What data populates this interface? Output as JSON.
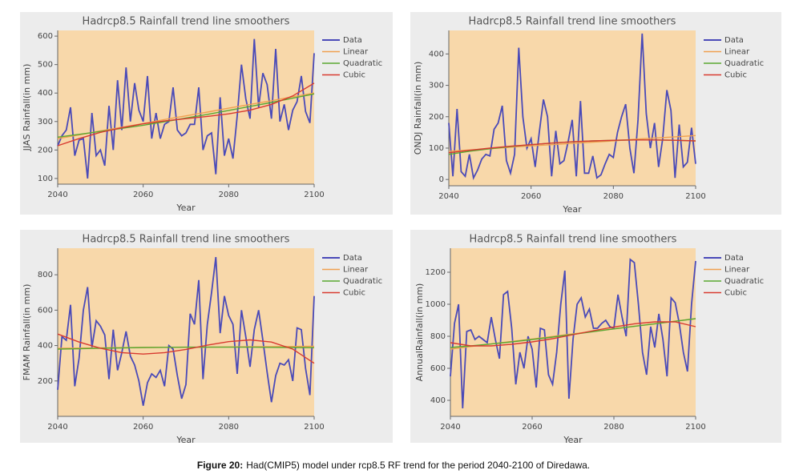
{
  "chart_data": [
    {
      "type": "line",
      "title": "Hadrcp8.5 Rainfall trend line smoothers",
      "xlabel": "Year",
      "ylabel": "JJAS Rainfall(in mm)",
      "x": [
        2040,
        2041,
        2042,
        2043,
        2044,
        2045,
        2046,
        2047,
        2048,
        2049,
        2050,
        2051,
        2052,
        2053,
        2054,
        2055,
        2056,
        2057,
        2058,
        2059,
        2060,
        2061,
        2062,
        2063,
        2064,
        2065,
        2066,
        2067,
        2068,
        2069,
        2070,
        2071,
        2072,
        2073,
        2074,
        2075,
        2076,
        2077,
        2078,
        2079,
        2080,
        2081,
        2082,
        2083,
        2084,
        2085,
        2086,
        2087,
        2088,
        2089,
        2090,
        2091,
        2092,
        2093,
        2094,
        2095,
        2096,
        2097,
        2098,
        2099,
        2100
      ],
      "xlim": [
        2040,
        2100
      ],
      "xticks": [
        2040,
        2060,
        2080,
        2100
      ],
      "ylim": [
        80,
        620
      ],
      "yticks": [
        100,
        200,
        300,
        400,
        500,
        600
      ],
      "series": [
        {
          "name": "Data",
          "color": "#4a4ab8",
          "values": [
            215,
            250,
            270,
            350,
            180,
            235,
            240,
            100,
            330,
            180,
            200,
            145,
            355,
            200,
            445,
            270,
            490,
            300,
            435,
            340,
            300,
            460,
            240,
            330,
            240,
            290,
            300,
            420,
            270,
            250,
            260,
            290,
            290,
            420,
            200,
            250,
            260,
            115,
            385,
            180,
            240,
            170,
            320,
            500,
            380,
            310,
            590,
            350,
            470,
            430,
            310,
            555,
            300,
            360,
            270,
            340,
            370,
            460,
            335,
            295,
            540
          ]
        },
        {
          "name": "Linear",
          "color": "#f0a050",
          "x": [
            2040,
            2045,
            2050,
            2055,
            2060,
            2065,
            2070,
            2075,
            2080,
            2085,
            2090,
            2095,
            2100
          ],
          "values": [
            240,
            253,
            267,
            280,
            293,
            307,
            320,
            333,
            347,
            360,
            373,
            387,
            400
          ]
        },
        {
          "name": "Quadratic",
          "color": "#5aa832",
          "x": [
            2040,
            2045,
            2050,
            2055,
            2060,
            2065,
            2070,
            2075,
            2080,
            2085,
            2090,
            2095,
            2100
          ],
          "values": [
            245,
            255,
            265,
            276,
            287,
            299,
            312,
            325,
            339,
            353,
            367,
            382,
            397
          ]
        },
        {
          "name": "Cubic",
          "color": "#d83a30",
          "x": [
            2040,
            2045,
            2050,
            2055,
            2060,
            2065,
            2070,
            2075,
            2080,
            2085,
            2090,
            2095,
            2100
          ],
          "values": [
            215,
            240,
            262,
            278,
            292,
            302,
            310,
            318,
            327,
            340,
            360,
            390,
            435
          ]
        }
      ]
    },
    {
      "type": "line",
      "title": "Hadrcp8.5 Rainfall trend line smoothers",
      "xlabel": "Year",
      "ylabel": "ONDJ Rainfall(in mm)",
      "x": [
        2040,
        2041,
        2042,
        2043,
        2044,
        2045,
        2046,
        2047,
        2048,
        2049,
        2050,
        2051,
        2052,
        2053,
        2054,
        2055,
        2056,
        2057,
        2058,
        2059,
        2060,
        2061,
        2062,
        2063,
        2064,
        2065,
        2066,
        2067,
        2068,
        2069,
        2070,
        2071,
        2072,
        2073,
        2074,
        2075,
        2076,
        2077,
        2078,
        2079,
        2080,
        2081,
        2082,
        2083,
        2084,
        2085,
        2086,
        2087,
        2088,
        2089,
        2090,
        2091,
        2092,
        2093,
        2094,
        2095,
        2096,
        2097,
        2098,
        2099,
        2100
      ],
      "xlim": [
        2040,
        2100
      ],
      "xticks": [
        2040,
        2060,
        2080,
        2100
      ],
      "ylim": [
        -20,
        475
      ],
      "yticks": [
        0,
        100,
        200,
        300,
        400
      ],
      "series": [
        {
          "name": "Data",
          "color": "#4a4ab8",
          "values": [
            180,
            10,
            225,
            25,
            10,
            80,
            5,
            30,
            65,
            80,
            75,
            160,
            180,
            235,
            60,
            20,
            80,
            420,
            200,
            100,
            130,
            40,
            150,
            255,
            200,
            10,
            155,
            50,
            60,
            120,
            190,
            10,
            250,
            20,
            20,
            75,
            5,
            15,
            50,
            80,
            70,
            150,
            200,
            240,
            100,
            20,
            190,
            465,
            210,
            100,
            180,
            40,
            130,
            285,
            220,
            5,
            175,
            40,
            55,
            165,
            50
          ]
        },
        {
          "name": "Linear",
          "color": "#f0a050",
          "x": [
            2040,
            2045,
            2050,
            2055,
            2060,
            2065,
            2070,
            2075,
            2080,
            2085,
            2090,
            2095,
            2100
          ],
          "values": [
            90,
            94,
            98,
            103,
            107,
            111,
            115,
            119,
            123,
            128,
            132,
            136,
            140
          ]
        },
        {
          "name": "Quadratic",
          "color": "#5aa832",
          "x": [
            2040,
            2045,
            2050,
            2055,
            2060,
            2065,
            2070,
            2075,
            2080,
            2085,
            2090,
            2095,
            2100
          ],
          "values": [
            80,
            90,
            98,
            105,
            111,
            116,
            120,
            123,
            125,
            126,
            126,
            125,
            123
          ]
        },
        {
          "name": "Cubic",
          "color": "#d83a30",
          "x": [
            2040,
            2045,
            2050,
            2055,
            2060,
            2065,
            2070,
            2075,
            2080,
            2085,
            2090,
            2095,
            2100
          ],
          "values": [
            85,
            93,
            100,
            106,
            111,
            116,
            120,
            123,
            125,
            126,
            126,
            125,
            123
          ]
        }
      ]
    },
    {
      "type": "line",
      "title": "Hadrcp8.5 Rainfall trend line smoothers",
      "xlabel": "Year",
      "ylabel": "FMAM Rainfall(in mm)",
      "x": [
        2040,
        2041,
        2042,
        2043,
        2044,
        2045,
        2046,
        2047,
        2048,
        2049,
        2050,
        2051,
        2052,
        2053,
        2054,
        2055,
        2056,
        2057,
        2058,
        2059,
        2060,
        2061,
        2062,
        2063,
        2064,
        2065,
        2066,
        2067,
        2068,
        2069,
        2070,
        2071,
        2072,
        2073,
        2074,
        2075,
        2076,
        2077,
        2078,
        2079,
        2080,
        2081,
        2082,
        2083,
        2084,
        2085,
        2086,
        2087,
        2088,
        2089,
        2090,
        2091,
        2092,
        2093,
        2094,
        2095,
        2096,
        2097,
        2098,
        2099,
        2100
      ],
      "xlim": [
        2040,
        2100
      ],
      "xticks": [
        2040,
        2060,
        2080,
        2100
      ],
      "ylim": [
        0,
        950
      ],
      "yticks": [
        200,
        400,
        600,
        800
      ],
      "series": [
        {
          "name": "Data",
          "color": "#4a4ab8",
          "values": [
            150,
            450,
            430,
            630,
            170,
            330,
            600,
            730,
            390,
            540,
            510,
            460,
            210,
            490,
            260,
            360,
            480,
            340,
            290,
            200,
            60,
            190,
            240,
            220,
            260,
            170,
            400,
            380,
            230,
            100,
            180,
            580,
            520,
            770,
            210,
            520,
            700,
            900,
            470,
            680,
            570,
            520,
            240,
            600,
            450,
            280,
            490,
            600,
            430,
            250,
            80,
            230,
            300,
            290,
            320,
            200,
            500,
            490,
            270,
            120,
            680
          ]
        },
        {
          "name": "Linear",
          "color": "#f0a050",
          "x": [
            2040,
            2045,
            2050,
            2055,
            2060,
            2065,
            2070,
            2075,
            2080,
            2085,
            2090,
            2095,
            2100
          ],
          "values": [
            385,
            386,
            387,
            388,
            389,
            390,
            390,
            391,
            392,
            393,
            394,
            395,
            396
          ]
        },
        {
          "name": "Quadratic",
          "color": "#5aa832",
          "x": [
            2040,
            2045,
            2050,
            2055,
            2060,
            2065,
            2070,
            2075,
            2080,
            2085,
            2090,
            2095,
            2100
          ],
          "values": [
            380,
            382,
            385,
            387,
            389,
            390,
            391,
            391,
            391,
            391,
            390,
            389,
            388
          ]
        },
        {
          "name": "Cubic",
          "color": "#d83a30",
          "x": [
            2040,
            2045,
            2050,
            2055,
            2060,
            2065,
            2070,
            2075,
            2080,
            2085,
            2090,
            2095,
            2100
          ],
          "values": [
            465,
            420,
            385,
            360,
            352,
            360,
            378,
            402,
            422,
            432,
            420,
            380,
            300
          ]
        }
      ]
    },
    {
      "type": "line",
      "title": "Hadrcp8.5 Rainfall trend line smoothers",
      "xlabel": "Year",
      "ylabel": "AnnualRainfall(in mm)",
      "x": [
        2040,
        2041,
        2042,
        2043,
        2044,
        2045,
        2046,
        2047,
        2048,
        2049,
        2050,
        2051,
        2052,
        2053,
        2054,
        2055,
        2056,
        2057,
        2058,
        2059,
        2060,
        2061,
        2062,
        2063,
        2064,
        2065,
        2066,
        2067,
        2068,
        2069,
        2070,
        2071,
        2072,
        2073,
        2074,
        2075,
        2076,
        2077,
        2078,
        2079,
        2080,
        2081,
        2082,
        2083,
        2084,
        2085,
        2086,
        2087,
        2088,
        2089,
        2090,
        2091,
        2092,
        2093,
        2094,
        2095,
        2096,
        2097,
        2098,
        2099,
        2100
      ],
      "xlim": [
        2040,
        2100
      ],
      "xticks": [
        2040,
        2060,
        2080,
        2100
      ],
      "ylim": [
        300,
        1350
      ],
      "yticks": [
        400,
        600,
        800,
        1000,
        1200
      ],
      "series": [
        {
          "name": "Data",
          "color": "#4a4ab8",
          "values": [
            550,
            880,
            1000,
            350,
            830,
            840,
            780,
            800,
            780,
            760,
            920,
            780,
            660,
            1060,
            1080,
            850,
            500,
            700,
            600,
            800,
            720,
            480,
            850,
            840,
            560,
            500,
            700,
            1000,
            1210,
            410,
            780,
            1000,
            1040,
            920,
            970,
            850,
            850,
            880,
            900,
            860,
            850,
            1060,
            920,
            800,
            1280,
            1260,
            1000,
            700,
            560,
            860,
            730,
            940,
            780,
            550,
            1040,
            1010,
            880,
            700,
            580,
            1000,
            1270
          ]
        },
        {
          "name": "Linear",
          "color": "#f0a050",
          "x": [
            2040,
            2045,
            2050,
            2055,
            2060,
            2065,
            2070,
            2075,
            2080,
            2085,
            2090,
            2095,
            2100
          ],
          "values": [
            720,
            736,
            752,
            768,
            783,
            799,
            815,
            831,
            847,
            863,
            878,
            894,
            910
          ]
        },
        {
          "name": "Quadratic",
          "color": "#5aa832",
          "x": [
            2040,
            2045,
            2050,
            2055,
            2060,
            2065,
            2070,
            2075,
            2080,
            2085,
            2090,
            2095,
            2100
          ],
          "values": [
            730,
            740,
            752,
            765,
            780,
            795,
            812,
            829,
            846,
            862,
            878,
            894,
            910
          ]
        },
        {
          "name": "Cubic",
          "color": "#d83a30",
          "x": [
            2040,
            2045,
            2050,
            2055,
            2060,
            2065,
            2070,
            2075,
            2080,
            2085,
            2090,
            2095,
            2100
          ],
          "values": [
            760,
            740,
            740,
            750,
            765,
            785,
            810,
            835,
            858,
            878,
            890,
            890,
            860
          ]
        }
      ]
    }
  ],
  "caption": {
    "label": "Figure 20:",
    "text": "Had(CMIP5) model under rcp8.5 RF  trend for the period 2040-2100 of Diredawa."
  }
}
